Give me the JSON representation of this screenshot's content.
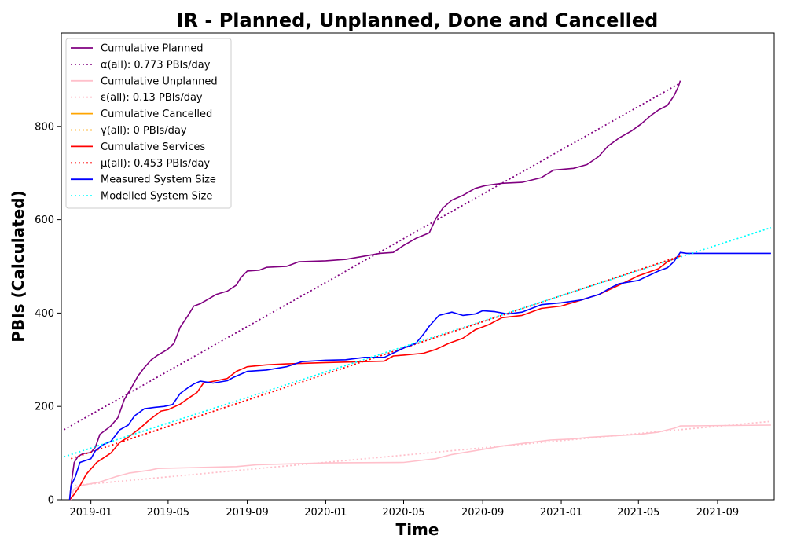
{
  "chart_data": {
    "type": "line",
    "title": "IR - Planned, Unplanned, Done  and Cancelled",
    "xlabel": "Time",
    "ylabel": "PBIs (Calculated)",
    "xlim": [
      "2018-11-16",
      "2021-11-28"
    ],
    "ylim": [
      0,
      1000
    ],
    "grid": false,
    "legend_position": "top-left",
    "x_ticks": [
      "2019-01",
      "2019-05",
      "2019-09",
      "2020-01",
      "2020-05",
      "2020-09",
      "2021-01",
      "2021-05",
      "2021-09"
    ],
    "x_tick_dates": [
      "2019-01-01",
      "2019-05-01",
      "2019-09-01",
      "2020-01-01",
      "2020-05-01",
      "2020-09-01",
      "2021-01-01",
      "2021-05-01",
      "2021-09-01"
    ],
    "y_ticks": [
      "0",
      "200",
      "400",
      "600",
      "800"
    ],
    "y_tick_values": [
      0,
      200,
      400,
      600,
      800
    ],
    "series": [
      {
        "name": "Cumulative Planned",
        "color": "#800080",
        "style": "solid",
        "points": [
          [
            "2018-11-29",
            0
          ],
          [
            "2018-12-01",
            30
          ],
          [
            "2018-12-06",
            80
          ],
          [
            "2018-12-12",
            93
          ],
          [
            "2018-12-20",
            99
          ],
          [
            "2019-01-01",
            101
          ],
          [
            "2019-01-08",
            113
          ],
          [
            "2019-01-15",
            140
          ],
          [
            "2019-02-01",
            158
          ],
          [
            "2019-02-12",
            176
          ],
          [
            "2019-02-22",
            215
          ],
          [
            "2019-03-05",
            240
          ],
          [
            "2019-03-15",
            265
          ],
          [
            "2019-03-25",
            283
          ],
          [
            "2019-04-05",
            300
          ],
          [
            "2019-04-15",
            310
          ],
          [
            "2019-04-30",
            322
          ],
          [
            "2019-05-10",
            335
          ],
          [
            "2019-05-20",
            370
          ],
          [
            "2019-06-01",
            395
          ],
          [
            "2019-06-10",
            415
          ],
          [
            "2019-06-20",
            420
          ],
          [
            "2019-06-30",
            428
          ],
          [
            "2019-07-15",
            440
          ],
          [
            "2019-08-01",
            447
          ],
          [
            "2019-08-15",
            460
          ],
          [
            "2019-08-22",
            476
          ],
          [
            "2019-09-01",
            490
          ],
          [
            "2019-09-20",
            492
          ],
          [
            "2019-10-01",
            498
          ],
          [
            "2019-11-01",
            500
          ],
          [
            "2019-11-20",
            510
          ],
          [
            "2020-01-01",
            512
          ],
          [
            "2020-02-01",
            515
          ],
          [
            "2020-03-01",
            522
          ],
          [
            "2020-03-25",
            528
          ],
          [
            "2020-04-15",
            530
          ],
          [
            "2020-05-01",
            545
          ],
          [
            "2020-05-20",
            560
          ],
          [
            "2020-06-10",
            572
          ],
          [
            "2020-06-20",
            602
          ],
          [
            "2020-07-01",
            625
          ],
          [
            "2020-07-15",
            642
          ],
          [
            "2020-08-01",
            652
          ],
          [
            "2020-08-20",
            667
          ],
          [
            "2020-09-05",
            673
          ],
          [
            "2020-10-01",
            678
          ],
          [
            "2020-11-01",
            680
          ],
          [
            "2020-12-01",
            690
          ],
          [
            "2020-12-20",
            706
          ],
          [
            "2021-01-20",
            710
          ],
          [
            "2021-02-10",
            718
          ],
          [
            "2021-02-28",
            735
          ],
          [
            "2021-03-15",
            758
          ],
          [
            "2021-04-01",
            775
          ],
          [
            "2021-04-20",
            790
          ],
          [
            "2021-05-05",
            805
          ],
          [
            "2021-05-20",
            823
          ],
          [
            "2021-06-01",
            835
          ],
          [
            "2021-06-15",
            845
          ],
          [
            "2021-06-25",
            865
          ],
          [
            "2021-07-02",
            885
          ],
          [
            "2021-07-05",
            898
          ]
        ]
      },
      {
        "name": "α(all): 0.773 PBIs/day",
        "color": "#800080",
        "style": "dotted",
        "points": [
          [
            "2018-11-20",
            150
          ],
          [
            "2021-07-05",
            893
          ]
        ]
      },
      {
        "name": "Cumulative Unplanned",
        "color": "#ffc0cb",
        "style": "solid",
        "points": [
          [
            "2018-12-01",
            0
          ],
          [
            "2018-12-05",
            22
          ],
          [
            "2018-12-15",
            30
          ],
          [
            "2019-01-15",
            38
          ],
          [
            "2019-02-10",
            50
          ],
          [
            "2019-03-01",
            57
          ],
          [
            "2019-04-01",
            63
          ],
          [
            "2019-04-15",
            67
          ],
          [
            "2019-06-15",
            69
          ],
          [
            "2019-08-15",
            71
          ],
          [
            "2019-09-15",
            75
          ],
          [
            "2020-01-01",
            79
          ],
          [
            "2020-05-01",
            80
          ],
          [
            "2020-06-01",
            85
          ],
          [
            "2020-06-20",
            88
          ],
          [
            "2020-07-15",
            97
          ],
          [
            "2020-08-20",
            105
          ],
          [
            "2020-10-01",
            115
          ],
          [
            "2020-11-15",
            123
          ],
          [
            "2020-12-15",
            128
          ],
          [
            "2021-01-15",
            130
          ],
          [
            "2021-02-15",
            134
          ],
          [
            "2021-05-01",
            140
          ],
          [
            "2021-06-01",
            145
          ],
          [
            "2021-06-25",
            153
          ],
          [
            "2021-07-05",
            158
          ],
          [
            "2021-11-23",
            160
          ]
        ]
      },
      {
        "name": "ε(all): 0.13 PBIs/day",
        "color": "#ffc0cb",
        "style": "dotted",
        "points": [
          [
            "2018-12-01",
            30
          ],
          [
            "2021-11-23",
            168
          ]
        ]
      },
      {
        "name": "Cumulative Cancelled",
        "color": "#ffa500",
        "style": "solid",
        "points": []
      },
      {
        "name": "γ(all): 0 PBIs/day",
        "color": "#ffa500",
        "style": "dotted",
        "points": []
      },
      {
        "name": "Cumulative Services",
        "color": "#ff0000",
        "style": "solid",
        "points": [
          [
            "2018-11-29",
            0
          ],
          [
            "2018-12-05",
            10
          ],
          [
            "2018-12-15",
            30
          ],
          [
            "2018-12-25",
            55
          ],
          [
            "2019-01-10",
            80
          ],
          [
            "2019-02-01",
            100
          ],
          [
            "2019-02-15",
            123
          ],
          [
            "2019-03-01",
            135
          ],
          [
            "2019-03-20",
            155
          ],
          [
            "2019-04-01",
            170
          ],
          [
            "2019-04-20",
            190
          ],
          [
            "2019-05-01",
            193
          ],
          [
            "2019-05-20",
            205
          ],
          [
            "2019-06-01",
            217
          ],
          [
            "2019-06-15",
            230
          ],
          [
            "2019-06-25",
            250
          ],
          [
            "2019-07-15",
            255
          ],
          [
            "2019-08-01",
            260
          ],
          [
            "2019-08-15",
            275
          ],
          [
            "2019-09-01",
            285
          ],
          [
            "2019-10-01",
            289
          ],
          [
            "2019-11-01",
            291
          ],
          [
            "2020-01-01",
            294
          ],
          [
            "2020-04-01",
            297
          ],
          [
            "2020-04-15",
            308
          ],
          [
            "2020-05-01",
            310
          ],
          [
            "2020-06-01",
            314
          ],
          [
            "2020-06-20",
            322
          ],
          [
            "2020-07-10",
            335
          ],
          [
            "2020-08-01",
            346
          ],
          [
            "2020-08-20",
            364
          ],
          [
            "2020-09-10",
            375
          ],
          [
            "2020-10-01",
            390
          ],
          [
            "2020-11-01",
            395
          ],
          [
            "2020-12-01",
            410
          ],
          [
            "2021-01-01",
            415
          ],
          [
            "2021-02-01",
            428
          ],
          [
            "2021-03-01",
            440
          ],
          [
            "2021-04-01",
            460
          ],
          [
            "2021-05-01",
            480
          ],
          [
            "2021-06-01",
            495
          ],
          [
            "2021-06-15",
            510
          ],
          [
            "2021-07-01",
            520
          ],
          [
            "2021-07-05",
            522
          ]
        ]
      },
      {
        "name": "μ(all): 0.453 PBIs/day",
        "color": "#ff0000",
        "style": "dotted",
        "points": [
          [
            "2018-12-01",
            88
          ],
          [
            "2021-07-05",
            522
          ]
        ]
      },
      {
        "name": "Measured System Size",
        "color": "#0000ff",
        "style": "solid",
        "points": [
          [
            "2018-11-29",
            0
          ],
          [
            "2018-12-01",
            30
          ],
          [
            "2018-12-08",
            50
          ],
          [
            "2018-12-15",
            80
          ],
          [
            "2019-01-01",
            88
          ],
          [
            "2019-01-08",
            105
          ],
          [
            "2019-01-20",
            118
          ],
          [
            "2019-02-01",
            125
          ],
          [
            "2019-02-15",
            150
          ],
          [
            "2019-02-28",
            160
          ],
          [
            "2019-03-10",
            180
          ],
          [
            "2019-03-25",
            195
          ],
          [
            "2019-04-10",
            198
          ],
          [
            "2019-04-25",
            200
          ],
          [
            "2019-05-08",
            204
          ],
          [
            "2019-05-20",
            228
          ],
          [
            "2019-06-01",
            240
          ],
          [
            "2019-06-10",
            248
          ],
          [
            "2019-06-20",
            254
          ],
          [
            "2019-07-10",
            250
          ],
          [
            "2019-08-01",
            255
          ],
          [
            "2019-08-10",
            262
          ],
          [
            "2019-09-01",
            275
          ],
          [
            "2019-10-01",
            278
          ],
          [
            "2019-11-01",
            285
          ],
          [
            "2019-11-25",
            296
          ],
          [
            "2020-01-01",
            299
          ],
          [
            "2020-02-01",
            300
          ],
          [
            "2020-03-01",
            305
          ],
          [
            "2020-04-01",
            305
          ],
          [
            "2020-05-01",
            325
          ],
          [
            "2020-05-20",
            335
          ],
          [
            "2020-06-01",
            355
          ],
          [
            "2020-06-10",
            372
          ],
          [
            "2020-06-25",
            395
          ],
          [
            "2020-07-15",
            402
          ],
          [
            "2020-08-01",
            395
          ],
          [
            "2020-08-20",
            398
          ],
          [
            "2020-09-01",
            405
          ],
          [
            "2020-09-20",
            403
          ],
          [
            "2020-10-10",
            398
          ],
          [
            "2020-11-01",
            402
          ],
          [
            "2020-12-01",
            418
          ],
          [
            "2021-01-01",
            422
          ],
          [
            "2021-02-01",
            428
          ],
          [
            "2021-03-01",
            440
          ],
          [
            "2021-03-20",
            455
          ],
          [
            "2021-04-01",
            463
          ],
          [
            "2021-05-01",
            470
          ],
          [
            "2021-06-01",
            490
          ],
          [
            "2021-06-15",
            497
          ],
          [
            "2021-06-25",
            510
          ],
          [
            "2021-07-05",
            530
          ],
          [
            "2021-07-15",
            528
          ],
          [
            "2021-11-23",
            528
          ]
        ]
      },
      {
        "name": "Modelled System Size",
        "color": "#00ffff",
        "style": "dotted",
        "points": [
          [
            "2018-11-20",
            92
          ],
          [
            "2021-11-23",
            583
          ]
        ]
      }
    ]
  }
}
